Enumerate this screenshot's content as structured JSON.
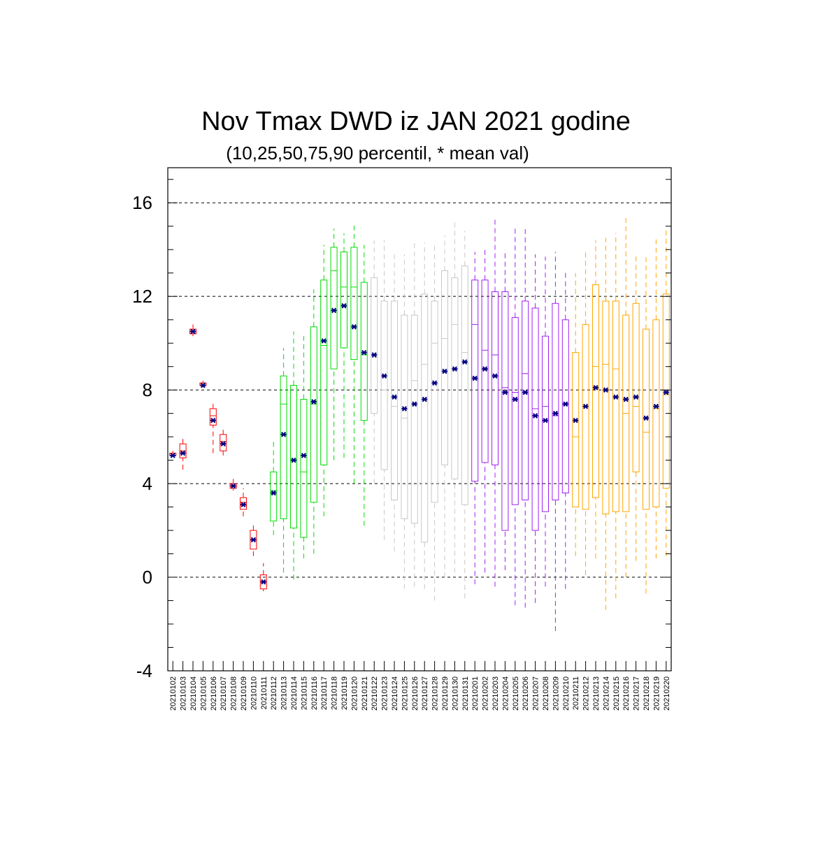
{
  "chart_data": {
    "type": "box",
    "title": "Nov Tmax DWD iz JAN 2021 godine",
    "subtitle": "(10,25,50,75,90 percentil, * mean val)",
    "xlabel": "",
    "ylabel": "",
    "ylim": [
      -4,
      17.5
    ],
    "yticks": [
      -4,
      0,
      4,
      8,
      12,
      16
    ],
    "grid": "dashed horizontal at major ticks",
    "legend": "none",
    "categories": [
      "20210102",
      "20210103",
      "20210104",
      "20210105",
      "20210106",
      "20210107",
      "20210108",
      "20210109",
      "20210110",
      "20210111",
      "20210112",
      "20210113",
      "20210114",
      "20210115",
      "20210116",
      "20210117",
      "20210118",
      "20210119",
      "20210120",
      "20210121",
      "20210122",
      "20210123",
      "20210124",
      "20210125",
      "20210126",
      "20210127",
      "20210128",
      "20210129",
      "20210130",
      "20210131",
      "20210201",
      "20210202",
      "20210203",
      "20210204",
      "20210205",
      "20210206",
      "20210207",
      "20210208",
      "20210209",
      "20210210",
      "20210211",
      "20210212",
      "20210213",
      "20210214",
      "20210215",
      "20210216",
      "20210217",
      "20210218",
      "20210219",
      "20210220"
    ],
    "p10": [
      5.2,
      4.6,
      10.3,
      8.1,
      5.3,
      5.2,
      3.7,
      2.6,
      0.9,
      -0.6,
      1.8,
      0.2,
      -0.1,
      0.8,
      1.0,
      2.6,
      5.0,
      5.1,
      4.0,
      2.2,
      4.0,
      1.6,
      1.1,
      -0.5,
      -0.4,
      -0.5,
      -1.0,
      0.0,
      0.2,
      -0.9,
      -0.3,
      0.2,
      -0.4,
      0.3,
      -1.2,
      -1.3,
      -1.1,
      -0.4,
      -2.3,
      -0.5,
      0.9,
      0.1,
      0.8,
      -1.4,
      -0.9,
      0.0,
      0.7,
      -0.7,
      0.8,
      0.9
    ],
    "p25": [
      5.2,
      5.1,
      10.4,
      8.2,
      6.5,
      5.4,
      3.8,
      2.9,
      1.2,
      -0.5,
      2.4,
      2.5,
      2.1,
      1.7,
      3.2,
      4.8,
      8.9,
      9.8,
      9.3,
      6.7,
      7.0,
      4.6,
      3.3,
      2.5,
      2.3,
      1.5,
      3.2,
      4.8,
      4.2,
      3.1,
      4.1,
      4.9,
      4.8,
      2.0,
      3.1,
      3.3,
      2.0,
      2.8,
      3.3,
      3.6,
      3.0,
      2.9,
      3.4,
      2.7,
      2.8,
      2.8,
      4.5,
      2.9,
      3.0,
      3.8
    ],
    "p50": [
      5.3,
      5.4,
      10.5,
      8.3,
      6.9,
      5.8,
      3.9,
      3.2,
      1.6,
      -0.2,
      3.7,
      7.4,
      5.0,
      4.5,
      7.4,
      9.9,
      13.1,
      12.4,
      12.4,
      9.5,
      9.4,
      8.0,
      7.3,
      6.8,
      8.4,
      9.1,
      10.0,
      10.2,
      10.8,
      9.6,
      10.8,
      9.7,
      9.5,
      8.1,
      7.9,
      8.7,
      7.2,
      7.3,
      6.9,
      7.4,
      6.0,
      7.3,
      9.0,
      9.1,
      8.9,
      7.0,
      7.3,
      6.2,
      7.2,
      7.8
    ],
    "p75": [
      5.3,
      5.7,
      10.6,
      8.3,
      7.2,
      6.1,
      4.0,
      3.4,
      2.0,
      0.1,
      4.5,
      8.6,
      8.2,
      7.6,
      10.7,
      12.7,
      14.1,
      13.9,
      14.1,
      12.6,
      12.8,
      11.8,
      11.8,
      11.2,
      11.2,
      12.1,
      11.8,
      13.1,
      12.8,
      13.3,
      12.7,
      12.7,
      12.2,
      12.2,
      11.1,
      11.8,
      11.5,
      10.3,
      11.7,
      11.0,
      9.6,
      10.8,
      12.5,
      11.8,
      11.8,
      11.2,
      11.7,
      10.6,
      11.0,
      12.1
    ],
    "p90": [
      5.4,
      6.0,
      10.8,
      8.4,
      7.5,
      6.3,
      4.2,
      3.8,
      2.3,
      0.6,
      5.8,
      9.8,
      10.5,
      10.3,
      12.3,
      14.2,
      14.9,
      14.7,
      15.1,
      14.2,
      14.4,
      14.4,
      13.9,
      13.8,
      14.4,
      14.3,
      14.2,
      14.6,
      15.2,
      14.8,
      13.9,
      14.1,
      15.3,
      14.0,
      14.9,
      14.9,
      13.8,
      13.7,
      13.9,
      13.1,
      13.0,
      13.9,
      14.4,
      14.5,
      14.7,
      15.5,
      13.8,
      13.8,
      14.5,
      14.9
    ],
    "mean": [
      5.2,
      5.3,
      10.5,
      8.2,
      6.7,
      5.7,
      3.9,
      3.1,
      1.6,
      -0.2,
      3.6,
      6.1,
      5.0,
      5.2,
      7.5,
      10.1,
      11.4,
      11.6,
      10.7,
      9.6,
      9.5,
      8.6,
      7.7,
      7.2,
      7.4,
      7.6,
      8.3,
      8.8,
      8.9,
      9.2,
      8.5,
      8.9,
      8.6,
      7.9,
      7.6,
      7.9,
      6.9,
      6.7,
      7.0,
      7.4,
      6.7,
      7.3,
      8.1,
      8.0,
      7.7,
      7.6,
      7.7,
      6.8,
      7.3,
      7.9
    ],
    "group_colors": [
      "#ff0000",
      "#ff0000",
      "#ff0000",
      "#ff0000",
      "#ff0000",
      "#ff0000",
      "#ff0000",
      "#ff0000",
      "#ff0000",
      "#ff0000",
      "#00dd00",
      "#00dd00",
      "#00dd00",
      "#00dd00",
      "#00dd00",
      "#00dd00",
      "#00dd00",
      "#00dd00",
      "#00dd00",
      "#00dd00",
      "#c8c8c8",
      "#c8c8c8",
      "#c8c8c8",
      "#c8c8c8",
      "#c8c8c8",
      "#c8c8c8",
      "#c8c8c8",
      "#c8c8c8",
      "#c8c8c8",
      "#c8c8c8",
      "#a020f0",
      "#a020f0",
      "#a020f0",
      "#a020f0",
      "#a020f0",
      "#a020f0",
      "#a020f0",
      "#a020f0",
      "#a020f0",
      "#a020f0",
      "#ffa500",
      "#ffa500",
      "#ffa500",
      "#ffa500",
      "#ffa500",
      "#ffa500",
      "#ffa500",
      "#ffa500",
      "#ffa500",
      "#ffa500"
    ],
    "mean_marker_color": "#000080"
  }
}
